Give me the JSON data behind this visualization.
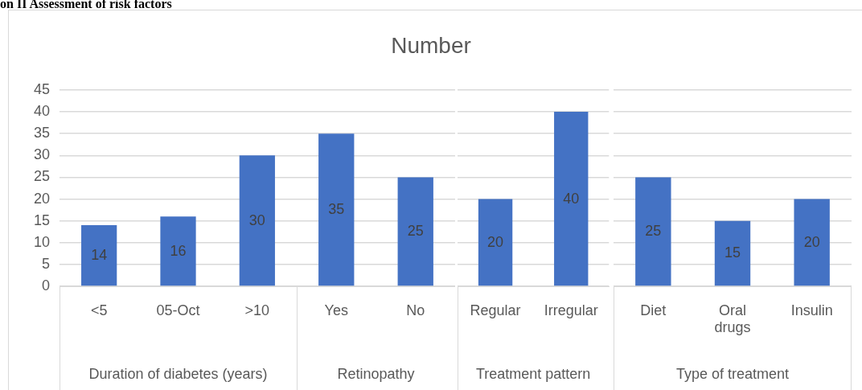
{
  "chart_data": [
    {
      "type": "bar",
      "xlabel": "Duration of diabetes (years)",
      "categories": [
        "<5",
        "05-Oct",
        ">10"
      ],
      "values": [
        14,
        16,
        30
      ],
      "color": "#4472c4",
      "ylim": [
        0,
        45
      ],
      "yticks": [
        0,
        5,
        10,
        15,
        20,
        25,
        30,
        35,
        40,
        45
      ],
      "grid": "y",
      "data_labels": true,
      "annotations": [
        "on II Assessment of risk factors"
      ]
    },
    {
      "type": "bar",
      "title": "Number",
      "xlabel": "Retinopathy",
      "categories": [
        "Yes",
        "No"
      ],
      "values": [
        35,
        25
      ],
      "color": "#4472c4",
      "ylim": [
        0,
        45
      ],
      "yticks": [
        0,
        5,
        10,
        15,
        20,
        25,
        30,
        35,
        40,
        45
      ],
      "grid": "y",
      "data_labels": true,
      "tick_labels": "x"
    },
    {
      "type": "bar",
      "xlabel": "Treatment pattern",
      "categories": [
        "Regular",
        "Irregular"
      ],
      "values": [
        20,
        40
      ],
      "color": "#4472c4",
      "ylim": [
        0,
        45
      ],
      "yticks": [
        0,
        5,
        10,
        15,
        20,
        25,
        30,
        35,
        40,
        45
      ],
      "grid": "y",
      "data_labels": true,
      "tick_labels": "x"
    },
    {
      "type": "bar",
      "xlabel": "Type of treatment",
      "categories": [
        "Diet",
        "Oral drugs",
        "Insulin"
      ],
      "values": [
        25,
        15,
        20
      ],
      "color": "#4472c4",
      "ylim": [
        0,
        45
      ],
      "yticks": [
        0,
        5,
        10,
        15,
        20,
        25,
        30,
        35,
        40,
        45
      ],
      "grid": "y",
      "data_labels": true,
      "tick_labels": "x"
    }
  ]
}
